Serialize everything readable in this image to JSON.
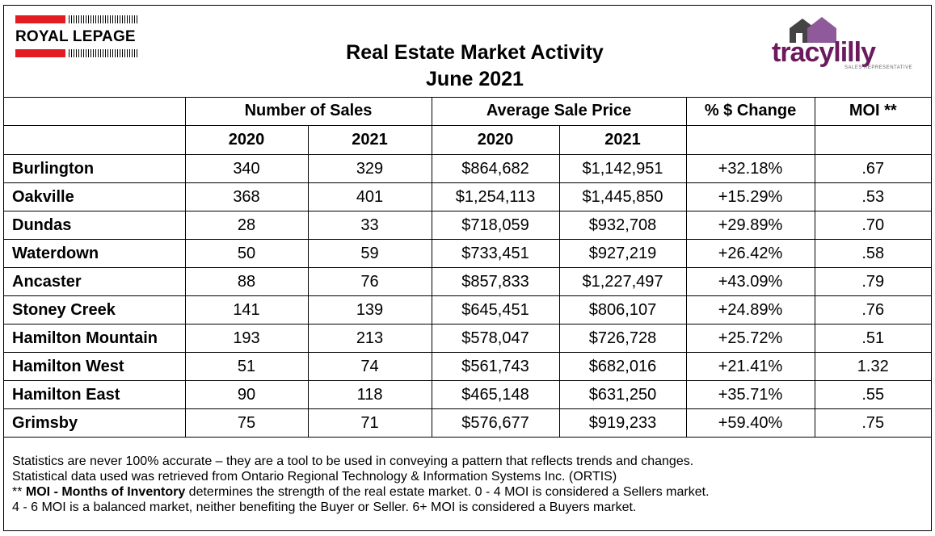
{
  "header": {
    "title_line1": "Real Estate Market Activity",
    "title_line2": "June 2021",
    "left_logo": {
      "text": "ROYAL LEPAGE",
      "accent": "#e31b23"
    },
    "right_logo": {
      "name": "tracylilly",
      "subtitle": "SALES REPRESENTATIVE",
      "accent": "#6b1a5e"
    }
  },
  "table": {
    "group_headers": [
      "Number of Sales",
      "Average Sale Price",
      "% $ Change",
      "MOI **"
    ],
    "year_headers": [
      "2020",
      "2021",
      "2020",
      "2021"
    ],
    "rows": [
      {
        "area": "Burlington",
        "sales_2020": "340",
        "sales_2021": "329",
        "price_2020": "$864,682",
        "price_2021": "$1,142,951",
        "change": "+32.18%",
        "moi": ".67"
      },
      {
        "area": "Oakville",
        "sales_2020": "368",
        "sales_2021": "401",
        "price_2020": "$1,254,113",
        "price_2021": "$1,445,850",
        "change": "+15.29%",
        "moi": ".53"
      },
      {
        "area": "Dundas",
        "sales_2020": "28",
        "sales_2021": "33",
        "price_2020": "$718,059",
        "price_2021": "$932,708",
        "change": "+29.89%",
        "moi": ".70"
      },
      {
        "area": "Waterdown",
        "sales_2020": "50",
        "sales_2021": "59",
        "price_2020": "$733,451",
        "price_2021": "$927,219",
        "change": "+26.42%",
        "moi": ".58"
      },
      {
        "area": "Ancaster",
        "sales_2020": "88",
        "sales_2021": "76",
        "price_2020": "$857,833",
        "price_2021": "$1,227,497",
        "change": "+43.09%",
        "moi": ".79"
      },
      {
        "area": "Stoney Creek",
        "sales_2020": "141",
        "sales_2021": "139",
        "price_2020": "$645,451",
        "price_2021": "$806,107",
        "change": "+24.89%",
        "moi": ".76"
      },
      {
        "area": "Hamilton Mountain",
        "sales_2020": "193",
        "sales_2021": "213",
        "price_2020": "$578,047",
        "price_2021": "$726,728",
        "change": "+25.72%",
        "moi": ".51"
      },
      {
        "area": "Hamilton West",
        "sales_2020": "51",
        "sales_2021": "74",
        "price_2020": "$561,743",
        "price_2021": "$682,016",
        "change": "+21.41%",
        "moi": "1.32"
      },
      {
        "area": "Hamilton East",
        "sales_2020": "90",
        "sales_2021": "118",
        "price_2020": "$465,148",
        "price_2021": "$631,250",
        "change": "+35.71%",
        "moi": ".55"
      },
      {
        "area": "Grimsby",
        "sales_2020": "75",
        "sales_2021": "71",
        "price_2020": "$576,677",
        "price_2021": "$919,233",
        "change": "+59.40%",
        "moi": ".75"
      }
    ]
  },
  "notes": {
    "line1": "Statistics are never 100% accurate – they are a tool to be used in conveying a pattern that reflects trends and changes.",
    "line2": "Statistical data used was retrieved from Ontario Regional Technology & Information Systems Inc. (ORTIS)",
    "line3_prefix": "** ",
    "line3_bold": "MOI - Months of Inventory",
    "line3_rest": " determines the strength of the real estate market. 0 - 4 MOI is considered a Sellers market.",
    "line4": "4 - 6 MOI is a balanced market, neither benefiting the Buyer or Seller. 6+ MOI is considered a Buyers market."
  }
}
